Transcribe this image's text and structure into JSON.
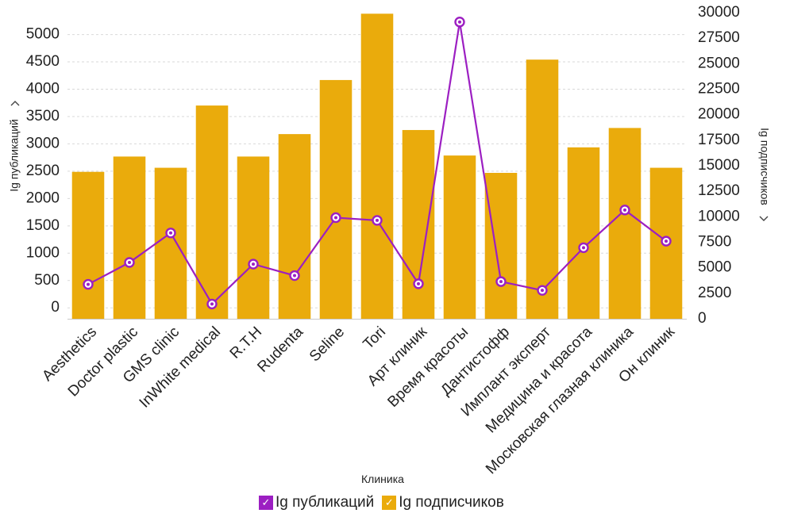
{
  "chart_data": {
    "type": "bar+line",
    "xlabel": "Клиника",
    "categories": [
      "Aesthetics",
      "Doctor plastic",
      "GMS clinic",
      "InWhite medical",
      "R.T.H",
      "Rudenta",
      "Seline",
      "Tori",
      "Арт клиник",
      "Время красоты",
      "Дантистофф",
      "Имплант эксперт",
      "Медицина и красота",
      "Московская глазная клиника",
      "Он клиник"
    ],
    "left_axis": {
      "label": "Ig публикаций",
      "ylim": [
        -200,
        5400
      ],
      "ticks": [
        0,
        500,
        1000,
        1500,
        2000,
        2500,
        3000,
        3500,
        4000,
        4500,
        5000
      ],
      "tick_labels": [
        "0",
        "500",
        "1000",
        "1500",
        "2000",
        "2500",
        "3000",
        "3500",
        "4000",
        "4500",
        "5000"
      ]
    },
    "right_axis": {
      "label": "Ig подписчиков",
      "ylim": [
        0,
        30000
      ],
      "ticks": [
        0,
        2500,
        5000,
        7500,
        10000,
        12500,
        15000,
        17500,
        20000,
        22500,
        25000,
        27500,
        30000
      ],
      "tick_labels": [
        "0",
        "2500",
        "5000",
        "7500",
        "10000",
        "12500",
        "15000",
        "17500",
        "20000",
        "22500",
        "25000",
        "27500",
        "30000"
      ]
    },
    "series": [
      {
        "name": "Ig подписчиков",
        "type": "bar",
        "axis": "right",
        "color": "#EAAB0C",
        "values": [
          14400,
          15900,
          14800,
          20900,
          15900,
          18100,
          23400,
          29900,
          18500,
          16000,
          14300,
          25400,
          16800,
          18700,
          14800
        ]
      },
      {
        "name": "Ig публикаций",
        "type": "line",
        "axis": "left",
        "color": "#9C1FC2",
        "values": [
          430,
          830,
          1370,
          70,
          800,
          590,
          1650,
          1600,
          440,
          5230,
          480,
          320,
          1100,
          1790,
          1220
        ]
      }
    ],
    "grid": true,
    "legend_position": "bottom-center"
  },
  "legend": {
    "items": [
      {
        "label": "Ig публикаций",
        "color": "#9C1FC2",
        "check": "✓"
      },
      {
        "label": "Ig подписчиков",
        "color": "#EAAB0C",
        "check": "✓"
      }
    ]
  },
  "axis_markers": {
    "left_sort_icon": "chevron-down-icon",
    "right_sort_icon": "chevron-left-icon"
  }
}
